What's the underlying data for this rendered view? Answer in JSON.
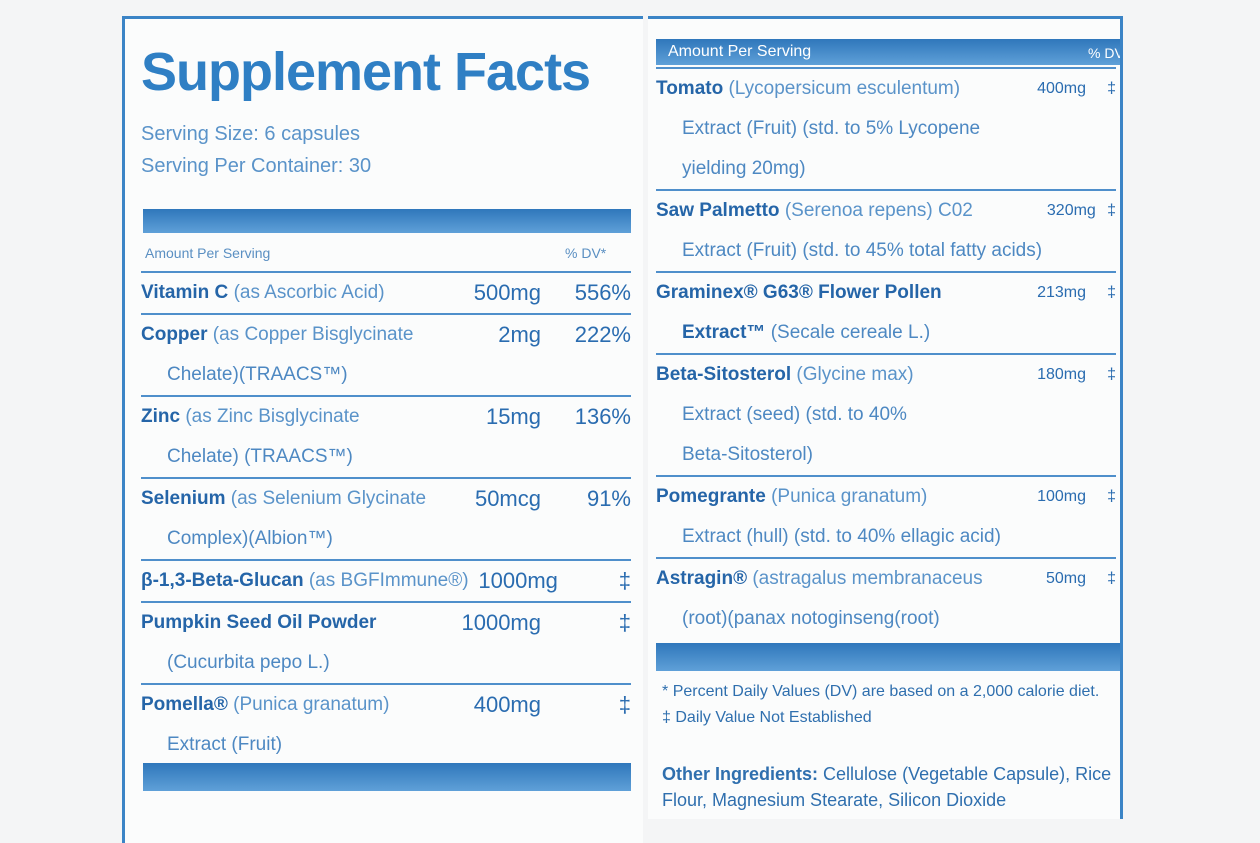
{
  "title": "Supplement Facts",
  "serving_size": "Serving Size: 6 capsules",
  "servings_per_container": "Serving Per Container: 30",
  "left_table": {
    "header": [
      "Amount Per Serving",
      "% DV*"
    ],
    "rows": [
      {
        "name": "Vitamin C",
        "desc": "(as Ascorbic Acid)",
        "amount": "500mg",
        "dv": "556%",
        "lines": []
      },
      {
        "name": "Copper",
        "desc": "(as Copper Bisglycinate",
        "amount": "2mg",
        "dv": "222%",
        "lines": [
          "Chelate)(TRAACS™)"
        ]
      },
      {
        "name": "Zinc",
        "desc": "(as Zinc Bisglycinate",
        "amount": "15mg",
        "dv": "136%",
        "lines": [
          "Chelate) (TRAACS™)"
        ]
      },
      {
        "name": "Selenium",
        "desc": "(as Selenium Glycinate",
        "amount": "50mcg",
        "dv": "91%",
        "lines": [
          "Complex)(Albion™)"
        ]
      },
      {
        "name": "β-1,3-Beta-Glucan",
        "desc": "(as BGFImmune®)",
        "amount": "1000mg",
        "dv": "‡",
        "lines": []
      },
      {
        "name": "Pumpkin Seed Oil Powder",
        "amount": "1000mg",
        "dv": "‡",
        "lines": [
          "(Cucurbita pepo L.)"
        ]
      },
      {
        "name": "Pomella®",
        "desc": "(Punica granatum)",
        "amount": "400mg",
        "dv": "‡",
        "lines": [
          "Extract (Fruit)"
        ]
      }
    ]
  },
  "right_table": {
    "header": [
      "Amount Per Serving",
      "% DV"
    ],
    "rows": [
      {
        "name": "Tomato",
        "desc": "(Lycopersicum esculentum)",
        "amount": "400mg",
        "dv": "‡",
        "lines": [
          "Extract (Fruit) (std. to 5% Lycopene",
          "yielding 20mg)"
        ]
      },
      {
        "name": "Saw Palmetto",
        "desc": "(Serenoa repens) C02",
        "amount": "320mg",
        "dv": "‡",
        "lines": [
          "Extract (Fruit) (std. to 45% total fatty acids)"
        ]
      },
      {
        "name": "Graminex® G63® Flower Pollen",
        "amount": "213mg",
        "dv": "‡",
        "extra_bold": "Extract™",
        "lines": [
          "(Secale cereale L.)"
        ]
      },
      {
        "name": "Beta-Sitosterol",
        "desc": "(Glycine max)",
        "amount": "180mg",
        "dv": "‡",
        "lines": [
          "Extract (seed) (std. to 40%",
          "Beta-Sitosterol)"
        ]
      },
      {
        "name": "Pomegrante",
        "desc": "(Punica granatum)",
        "amount": "100mg",
        "dv": "‡",
        "lines": [
          "Extract (hull) (std. to 40% ellagic acid)"
        ]
      },
      {
        "name": "Astragin®",
        "desc": "(astragalus membranaceus",
        "amount": "50mg",
        "dv": "‡",
        "lines": [
          "(root)(panax notoginseng(root)"
        ]
      }
    ]
  },
  "footnotes": [
    {
      "symbol": "*",
      "text": "Percent Daily Values (DV) are based on a 2,000 calorie diet."
    },
    {
      "symbol": "‡",
      "text": "Daily Value Not Established"
    }
  ],
  "other_ingredients": {
    "label": "Other Ingredients:",
    "text": "Cellulose (Vegetable Capsule), Rice Flour, Magnesium Stearate, Silicon Dioxide"
  }
}
